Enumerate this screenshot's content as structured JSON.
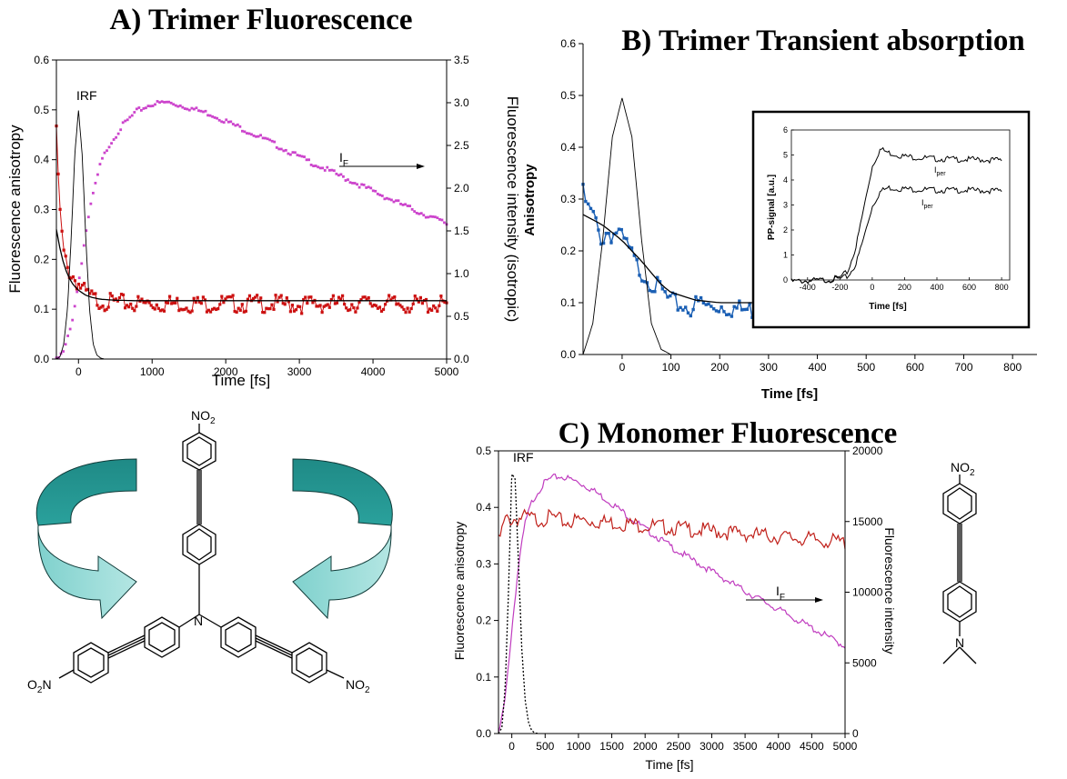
{
  "chart_data": [
    {
      "id": "A",
      "type": "scatter",
      "title": "A) Trimer Fluorescence",
      "xlabel": "Time [fs]",
      "ylabel": "Fluorescence anisotropy",
      "y2label": "Fluorescence intensity (isotropic)",
      "xlim": [
        -300,
        5000
      ],
      "ylim": [
        0,
        0.6
      ],
      "y2lim": [
        0,
        3.5
      ],
      "xticks": [
        0,
        1000,
        2000,
        3000,
        4000,
        5000
      ],
      "yticks": [
        0.0,
        0.1,
        0.2,
        0.3,
        0.4,
        0.5,
        0.6
      ],
      "y2ticks": [
        0.0,
        0.5,
        1.0,
        1.5,
        2.0,
        2.5,
        3.0,
        3.5
      ],
      "annotations": {
        "irf": "IRF",
        "if_main": "I",
        "if_sub": "F"
      },
      "colors": {
        "anisotropy": "#cc1111",
        "intensity": "#cc44cc",
        "irf": "#000000",
        "fit": "#000000"
      },
      "series": [
        {
          "kind": "irf",
          "x": [
            -300,
            -250,
            -200,
            -150,
            -100,
            -50,
            0,
            50,
            100,
            150,
            200,
            250,
            300,
            350
          ],
          "y": [
            0.0,
            0.005,
            0.03,
            0.1,
            0.24,
            0.41,
            0.5,
            0.41,
            0.24,
            0.1,
            0.03,
            0.008,
            0.002,
            0.0
          ]
        },
        {
          "kind": "anisotropy",
          "x": [
            -300,
            -250,
            -200,
            -150,
            -100,
            -50,
            0,
            100,
            200,
            300,
            500,
            800,
            1000,
            1500,
            2000,
            2500,
            3000,
            3500,
            4000,
            4500,
            5000
          ],
          "y": [
            0.46,
            0.3,
            0.22,
            0.19,
            0.18,
            0.17,
            0.16,
            0.14,
            0.13,
            0.125,
            0.122,
            0.12,
            0.12,
            0.12,
            0.12,
            0.12,
            0.118,
            0.12,
            0.12,
            0.118,
            0.118
          ]
        },
        {
          "kind": "fit",
          "x": [
            -300,
            -250,
            -200,
            -150,
            -100,
            -50,
            0,
            100,
            200,
            300,
            500,
            800,
            1000,
            2000,
            3000,
            4000,
            5000
          ],
          "y": [
            0.26,
            0.22,
            0.19,
            0.17,
            0.155,
            0.145,
            0.138,
            0.128,
            0.123,
            0.12,
            0.118,
            0.117,
            0.117,
            0.117,
            0.117,
            0.117,
            0.117
          ]
        },
        {
          "kind": "intensity",
          "x": [
            -300,
            -200,
            -100,
            0,
            100,
            200,
            300,
            400,
            600,
            800,
            1000,
            1200,
            1400,
            1600,
            1800,
            2000,
            2500,
            3000,
            3500,
            4000,
            4500,
            5000
          ],
          "y": [
            0.0,
            0.1,
            0.4,
            0.9,
            1.5,
            1.95,
            2.3,
            2.5,
            2.75,
            2.92,
            3.0,
            3.02,
            2.98,
            2.93,
            2.88,
            2.8,
            2.6,
            2.38,
            2.18,
            1.98,
            1.78,
            1.6
          ]
        }
      ]
    },
    {
      "id": "B",
      "type": "line",
      "title": "B) Trimer Transient absorption",
      "xlabel": "Time [fs]",
      "ylabel": "Anisotropy",
      "xlim": [
        -80,
        850
      ],
      "ylim": [
        0,
        0.6
      ],
      "xticks": [
        0,
        100,
        200,
        300,
        400,
        500,
        600,
        700,
        800
      ],
      "yticks": [
        0.0,
        0.1,
        0.2,
        0.3,
        0.4,
        0.5,
        0.6
      ],
      "colors": {
        "anisotropy": "#1a5fb4",
        "irf": "#000000",
        "fit": "#000000"
      },
      "series": [
        {
          "kind": "irf",
          "x": [
            -80,
            -60,
            -40,
            -20,
            0,
            20,
            40,
            60,
            80,
            100,
            120
          ],
          "y": [
            0.0,
            0.06,
            0.22,
            0.42,
            0.495,
            0.42,
            0.22,
            0.06,
            0.01,
            0.0,
            0.0
          ]
        },
        {
          "kind": "anisotropy",
          "x": [
            -80,
            -70,
            -60,
            -50,
            -40,
            -30,
            -20,
            -10,
            0,
            10,
            20,
            30,
            40,
            50,
            60,
            70,
            80,
            90,
            100,
            120,
            140,
            160,
            180,
            200,
            250,
            300,
            350,
            400,
            450,
            500,
            550,
            600,
            650,
            700,
            750,
            760
          ],
          "y": [
            0.32,
            0.29,
            0.28,
            0.25,
            0.23,
            0.25,
            0.24,
            0.25,
            0.23,
            0.22,
            0.2,
            0.18,
            0.17,
            0.16,
            0.15,
            0.14,
            0.135,
            0.12,
            0.11,
            0.105,
            0.1,
            0.11,
            0.1,
            0.105,
            0.095,
            0.1,
            0.11,
            0.1,
            0.105,
            0.1,
            0.09,
            0.1,
            0.095,
            0.1,
            0.1,
            0.09
          ]
        },
        {
          "kind": "fit",
          "x": [
            -80,
            -40,
            0,
            40,
            80,
            100,
            150,
            200,
            300,
            500,
            760
          ],
          "y": [
            0.27,
            0.25,
            0.22,
            0.18,
            0.135,
            0.12,
            0.105,
            0.1,
            0.1,
            0.1,
            0.1
          ]
        }
      ],
      "inset": {
        "ylabel": "PP-signal [a.u.]",
        "xlabel": "Time [fs]",
        "xlim": [
          -500,
          850
        ],
        "ylim": [
          0,
          6
        ],
        "xticks": [
          -400,
          -200,
          0,
          200,
          400,
          600,
          800
        ],
        "yticks": [
          0,
          1,
          2,
          3,
          4,
          5,
          6
        ],
        "label_upper": {
          "main": "I",
          "sub": "per"
        },
        "label_lower": {
          "main": "I",
          "sub": "per"
        },
        "series": [
          {
            "name": "",
            "x": [
              -500,
              -300,
              -200,
              -150,
              -100,
              -50,
              0,
              50,
              100,
              200,
              400,
              600,
              800
            ],
            "y": [
              0.0,
              0.05,
              0.15,
              0.4,
              1.4,
              3.0,
              4.6,
              5.3,
              5.15,
              5.0,
              4.9,
              4.88,
              4.85
            ]
          },
          {
            "name": "",
            "x": [
              -500,
              -300,
              -200,
              -150,
              -100,
              -50,
              0,
              50,
              100,
              200,
              400,
              600,
              800
            ],
            "y": [
              0.0,
              0.05,
              0.1,
              0.2,
              0.7,
              1.8,
              3.0,
              3.6,
              3.75,
              3.7,
              3.65,
              3.65,
              3.62
            ]
          }
        ]
      }
    },
    {
      "id": "C",
      "type": "line",
      "title": "C) Monomer Fluorescence",
      "xlabel": "Time [fs]",
      "ylabel": "Fluorescence anisotropy",
      "y2label": "Fluorescence intensity",
      "xlim": [
        -200,
        5000
      ],
      "ylim": [
        0,
        0.5
      ],
      "y2lim": [
        0,
        20000
      ],
      "xticks": [
        0,
        500,
        1000,
        1500,
        2000,
        2500,
        3000,
        3500,
        4000,
        4500,
        5000
      ],
      "yticks": [
        0.0,
        0.1,
        0.2,
        0.3,
        0.4,
        0.5
      ],
      "y2ticks": [
        0,
        5000,
        10000,
        15000,
        20000
      ],
      "annotations": {
        "irf": "IRF",
        "if_main": "I",
        "if_sub": "F"
      },
      "colors": {
        "anisotropy": "#c0201a",
        "intensity": "#c03cbf",
        "irf": "#000000"
      },
      "series": [
        {
          "kind": "irf",
          "x": [
            -200,
            -150,
            -100,
            -50,
            0,
            50,
            100,
            150,
            200,
            250,
            300,
            350,
            400
          ],
          "y": [
            0.0,
            0.01,
            0.08,
            0.25,
            0.46,
            0.45,
            0.3,
            0.15,
            0.06,
            0.02,
            0.005,
            0.001,
            0.0
          ]
        },
        {
          "kind": "anisotropy",
          "x": [
            -200,
            -100,
            0,
            200,
            400,
            600,
            800,
            1000,
            1500,
            2000,
            2500,
            3000,
            3500,
            4000,
            4500,
            5000
          ],
          "y": [
            0.345,
            0.385,
            0.385,
            0.39,
            0.385,
            0.39,
            0.38,
            0.385,
            0.38,
            0.375,
            0.37,
            0.365,
            0.36,
            0.355,
            0.35,
            0.345
          ]
        },
        {
          "kind": "intensity",
          "x": [
            -200,
            -100,
            0,
            100,
            200,
            300,
            400,
            500,
            600,
            700,
            800,
            1000,
            1200,
            1500,
            2000,
            2500,
            3000,
            3500,
            4000,
            4500,
            5000
          ],
          "y": [
            0,
            2500,
            7500,
            12000,
            15000,
            16500,
            17300,
            17900,
            18200,
            18300,
            18250,
            17900,
            17400,
            16400,
            14600,
            13000,
            11600,
            10200,
            8900,
            7600,
            6300
          ]
        }
      ]
    }
  ],
  "chemistry": {
    "trimer": {
      "no2_top": "NO2",
      "n_center": "N",
      "o2n_left": "O2N",
      "no2_right": "NO2"
    },
    "monomer": {
      "no2": "NO2",
      "n": "N"
    }
  }
}
